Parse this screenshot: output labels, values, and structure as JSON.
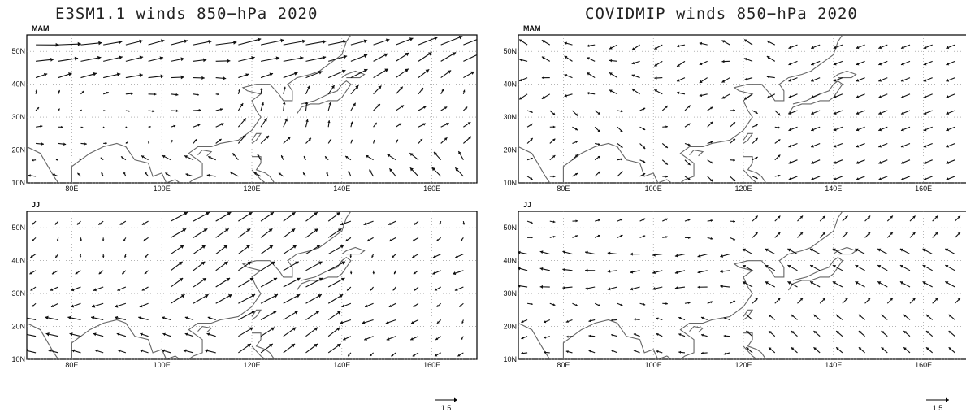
{
  "figure": {
    "left_title": "E3SM1.1 winds 850−hPa 2020",
    "right_title": "COVIDMIP winds 850−hPa 2020"
  },
  "panels": [
    {
      "id": "e3sm-mam",
      "season": "MAM"
    },
    {
      "id": "e3sm-jj",
      "season": "JJ"
    },
    {
      "id": "covid-mam",
      "season": "MAM"
    },
    {
      "id": "covid-jj",
      "season": "JJ"
    }
  ],
  "axes": {
    "lon_labels": [
      "80E",
      "100E",
      "120E",
      "140E",
      "160E"
    ],
    "lon_values": [
      80,
      100,
      120,
      140,
      160
    ],
    "lat_labels": [
      "10N",
      "20N",
      "30N",
      "40N",
      "50N"
    ],
    "lat_values": [
      10,
      20,
      30,
      40,
      50
    ],
    "lon_range": [
      70,
      170
    ],
    "lat_range": [
      10,
      55
    ]
  },
  "reference_vector": {
    "value": "1.5"
  },
  "colors": {
    "coast": "#666666",
    "arrow": "#111111",
    "grid": "#888888"
  }
}
